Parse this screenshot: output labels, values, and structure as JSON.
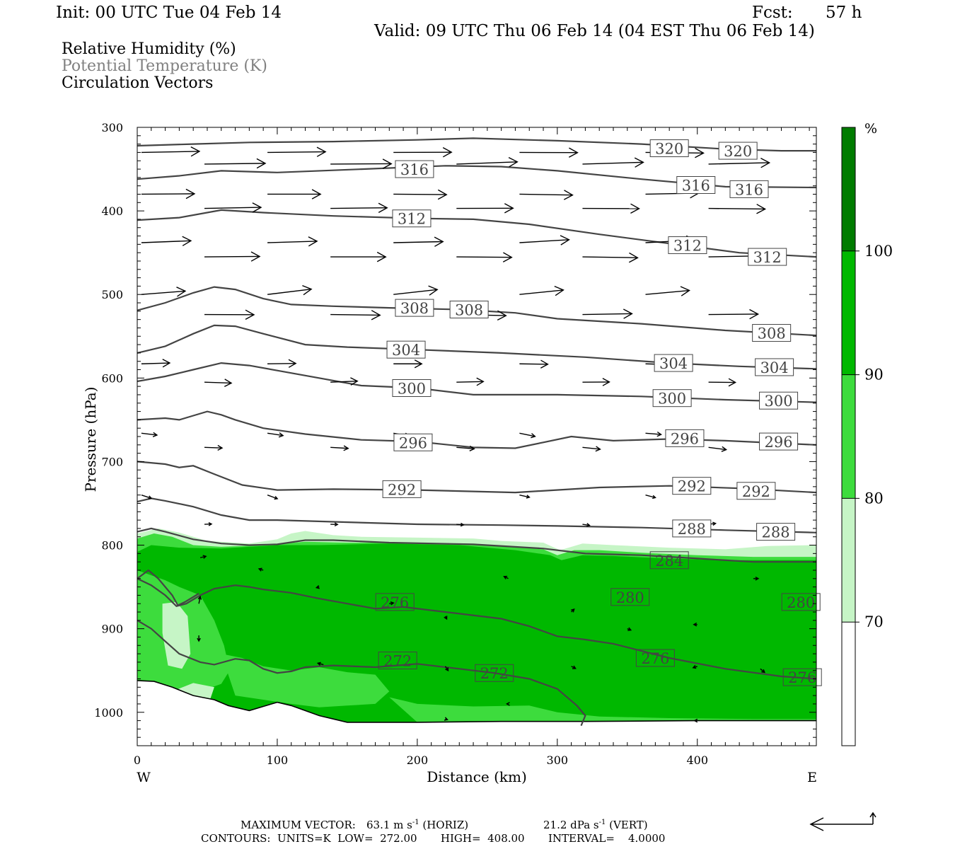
{
  "header": {
    "init": "Init: 00 UTC Tue 04 Feb 14",
    "fcst_label": "Fcst:",
    "fcst_value": "57 h",
    "valid": "Valid: 09 UTC Thu 06 Feb 14 (04 EST Thu 06 Feb 14)"
  },
  "legend": {
    "line1": "Relative Humidity (%)",
    "line2": "Potential Temperature (K)",
    "line3": "Circulation Vectors"
  },
  "chart_data": {
    "type": "cross-section",
    "xlabel": "Distance (km)",
    "ylabel": "Pressure (hPa)",
    "xlim": [
      0,
      485
    ],
    "ylim": [
      1040,
      300
    ],
    "x_ticks": [
      0,
      100,
      200,
      300,
      400
    ],
    "y_ticks": [
      300,
      400,
      500,
      600,
      700,
      800,
      900,
      1000
    ],
    "x_end_labels": {
      "left": "W",
      "right": "E"
    },
    "colorbar": {
      "unit": "%",
      "levels": [
        70,
        80,
        90,
        100
      ],
      "colors": [
        "#ffffff",
        "#c6f5c6",
        "#3ddc3d",
        "#00b800",
        "#007c00"
      ]
    },
    "theta_contours": [
      {
        "value": 320,
        "labels": [
          [
            380,
            325
          ],
          [
            429,
            328
          ]
        ]
      },
      {
        "value": 316,
        "labels": [
          [
            198,
            350
          ],
          [
            399,
            369
          ],
          [
            437,
            374
          ]
        ]
      },
      {
        "value": 312,
        "labels": [
          [
            196,
            409
          ],
          [
            393,
            441
          ],
          [
            450,
            455
          ]
        ]
      },
      {
        "value": 308,
        "labels": [
          [
            198,
            516
          ],
          [
            237,
            518
          ],
          [
            453,
            546
          ]
        ]
      },
      {
        "value": 304,
        "labels": [
          [
            192,
            566
          ],
          [
            383,
            582
          ],
          [
            455,
            587
          ]
        ]
      },
      {
        "value": 300,
        "labels": [
          [
            196,
            612
          ],
          [
            382,
            624
          ],
          [
            458,
            627
          ]
        ]
      },
      {
        "value": 296,
        "labels": [
          [
            197,
            677
          ],
          [
            391,
            672
          ],
          [
            458,
            676
          ]
        ]
      },
      {
        "value": 292,
        "labels": [
          [
            189,
            733
          ],
          [
            396,
            729
          ],
          [
            442,
            735
          ]
        ]
      },
      {
        "value": 288,
        "labels": [
          [
            396,
            780
          ],
          [
            456,
            784
          ]
        ]
      },
      {
        "value": 284,
        "labels": [
          [
            380,
            818
          ],
          null
        ]
      },
      {
        "value": 280,
        "labels": [
          [
            352,
            862
          ],
          [
            474,
            868
          ]
        ]
      },
      {
        "value": 276,
        "labels": [
          [
            184,
            868
          ],
          [
            370,
            935
          ],
          [
            475,
            958
          ]
        ]
      },
      {
        "value": 272,
        "labels": [
          [
            186,
            938
          ],
          [
            255,
            953
          ]
        ]
      }
    ],
    "footer": {
      "max_vector_label": "MAXIMUM VECTOR:",
      "horiz_value": "63.1 m s",
      "horiz_suffix": " (HORIZ)",
      "vert_value": "21.2 dPa s",
      "vert_suffix": " (VERT)",
      "exponent": "-1",
      "contours_line": "CONTOURS:  UNITS=K  LOW=  272.00       HIGH=  408.00       INTERVAL=    4.0000"
    }
  }
}
